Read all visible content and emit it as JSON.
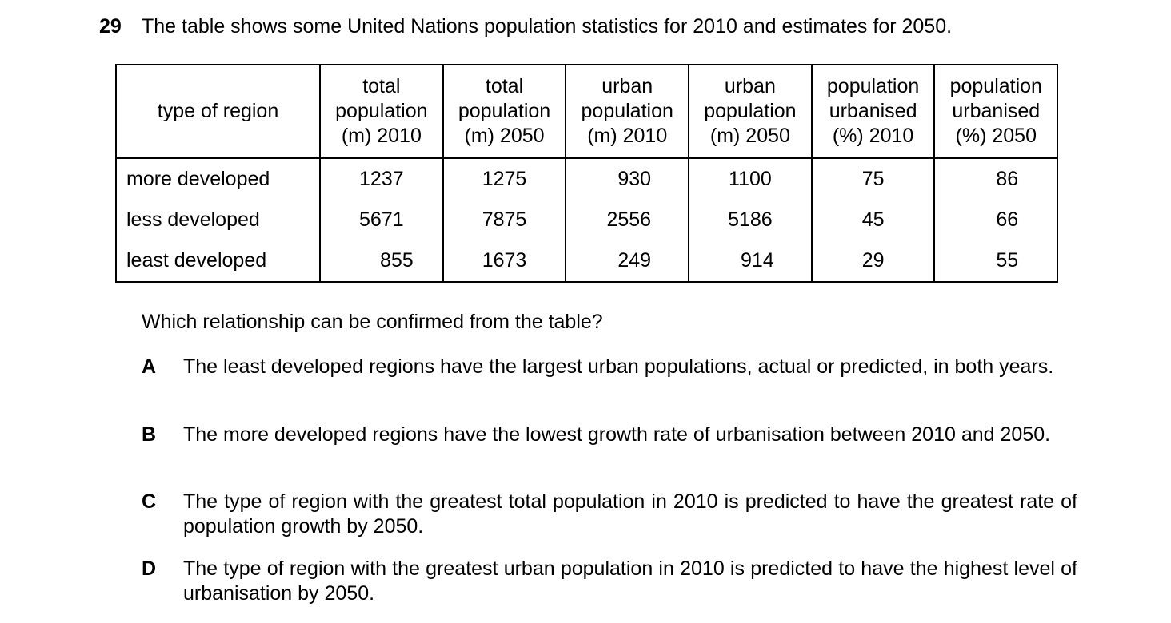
{
  "question": {
    "number": "29",
    "intro": "The table shows some United Nations population statistics for 2010 and estimates for 2050."
  },
  "table": {
    "headers": [
      [
        "type of region"
      ],
      [
        "total",
        "population",
        "(m) 2010"
      ],
      [
        "total",
        "population",
        "(m) 2050"
      ],
      [
        "urban",
        "population",
        "(m) 2010"
      ],
      [
        "urban",
        "population",
        "(m) 2050"
      ],
      [
        "population",
        "urbanised",
        "(%) 2010"
      ],
      [
        "population",
        "urbanised",
        "(%) 2050"
      ]
    ],
    "rows": [
      [
        "more developed",
        "1237",
        "1275",
        "930",
        "1100",
        "75",
        "86"
      ],
      [
        "less developed",
        "5671",
        "7875",
        "2556",
        "5186",
        "45",
        "66"
      ],
      [
        "least developed",
        "855",
        "1673",
        "249",
        "914",
        "29",
        "55"
      ]
    ]
  },
  "stem": "Which relationship can be confirmed from the table?",
  "options": [
    {
      "letter": "A",
      "text": "The least developed regions have the largest urban populations, actual or predicted, in both years."
    },
    {
      "letter": "B",
      "text": "The more developed regions have the lowest growth rate of urbanisation between 2010 and 2050."
    },
    {
      "letter": "C",
      "text": "The type of region with the greatest total population in 2010 is predicted to have the greatest rate of population growth by 2050."
    },
    {
      "letter": "D",
      "text": "The type of region with the greatest urban population in 2010 is predicted to have the highest level of urbanisation by 2050."
    }
  ]
}
